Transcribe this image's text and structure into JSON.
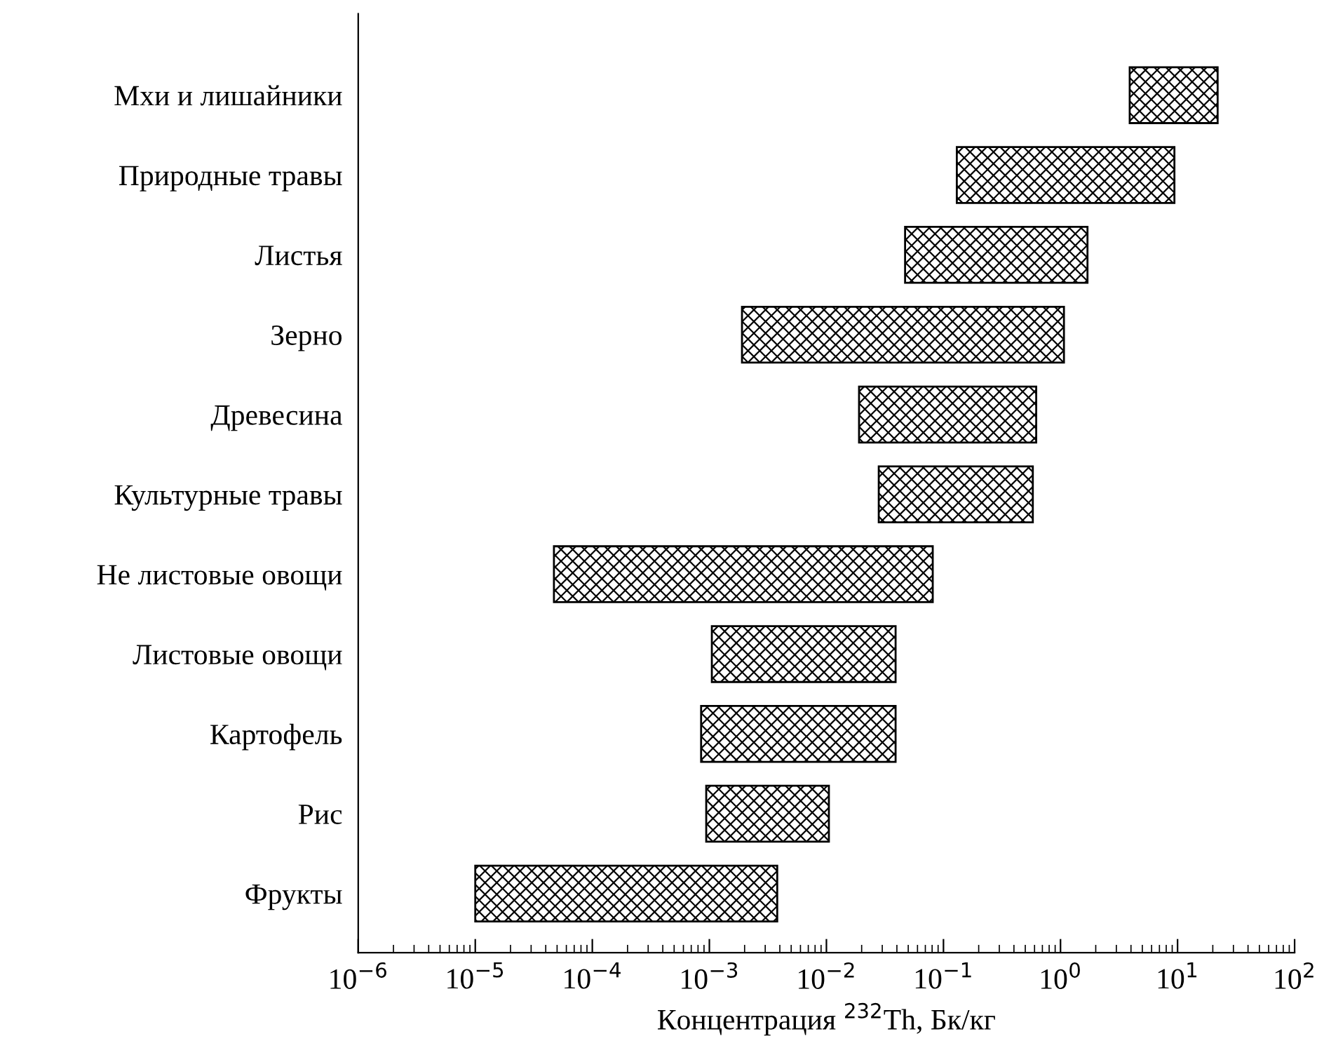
{
  "chart_data": {
    "type": "bar",
    "orientation": "horizontal",
    "log": "x",
    "xlabel": "Концентрация $^{232}$Th, Бк/кг",
    "categories": [
      "Мхи и лишайники",
      "Природные травы",
      "Листья",
      "Зерно",
      "Древесина",
      "Культурные травы",
      "Не листовые овощи",
      "Листовые овощи",
      "Картофель",
      "Рис",
      "Фрукты"
    ],
    "base": [
      3.9,
      0.13,
      0.047,
      0.0019,
      0.019,
      0.028,
      4.7e-05,
      0.00105,
      0.00085,
      0.00094,
      1e-05
    ],
    "values": [
      18.1,
      9.27,
      1.653,
      1.0681,
      0.601,
      0.552,
      0.080953,
      0.03795,
      0.03815,
      0.00956,
      0.00379
    ],
    "color": "#000000",
    "xlim": [
      1e-06,
      100
    ],
    "xticks": [
      {
        "value": 1e-06,
        "label": "10$^{−6}$"
      },
      {
        "value": 1e-05,
        "label": "10$^{−5}$"
      },
      {
        "value": 0.0001,
        "label": "10$^{−4}$"
      },
      {
        "value": 0.001,
        "label": "10$^{−3}$"
      },
      {
        "value": 0.01,
        "label": "10$^{−2}$"
      },
      {
        "value": 0.1,
        "label": "10$^{−1}$"
      },
      {
        "value": 1,
        "label": "10$^{0}$"
      },
      {
        "value": 10,
        "label": "10$^{1}$"
      },
      {
        "value": 100,
        "label": "10$^{2}$"
      }
    ],
    "grid": false,
    "legend": false
  }
}
